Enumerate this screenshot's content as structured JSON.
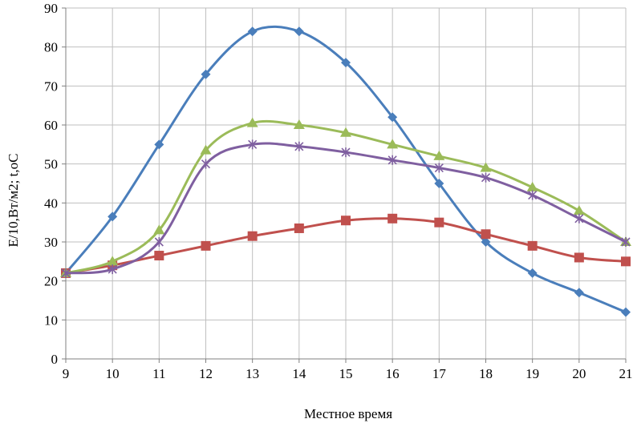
{
  "chart_data": {
    "type": "line",
    "xlabel": "Местное время",
    "ylabel": "E/10,Вт/м2; t,oC",
    "x": [
      9,
      10,
      11,
      12,
      13,
      14,
      15,
      16,
      17,
      18,
      19,
      20,
      21
    ],
    "xlim": [
      9,
      21
    ],
    "ylim": [
      0,
      90
    ],
    "yticks": [
      0,
      10,
      20,
      30,
      40,
      50,
      60,
      70,
      80,
      90
    ],
    "grid": true,
    "legend": "none",
    "series": [
      {
        "marker": "diamond",
        "color": "#4a7ebb",
        "values": [
          22,
          36.5,
          55,
          73,
          84,
          84,
          76,
          62,
          45,
          30,
          22,
          17,
          12
        ]
      },
      {
        "marker": "square",
        "color": "#c0504d",
        "values": [
          22,
          24,
          26.5,
          29,
          31.5,
          33.5,
          35.5,
          36,
          35,
          32,
          29,
          26,
          25
        ]
      },
      {
        "marker": "triangle",
        "color": "#9bbb59",
        "values": [
          22,
          25,
          33,
          53.5,
          60.5,
          60,
          58,
          55,
          52,
          49,
          44,
          38,
          30
        ]
      },
      {
        "marker": "star",
        "color": "#7f5fa0",
        "values": [
          22,
          23,
          30,
          50,
          55,
          54.5,
          53,
          51,
          49,
          46.5,
          42,
          36,
          30
        ]
      }
    ]
  }
}
